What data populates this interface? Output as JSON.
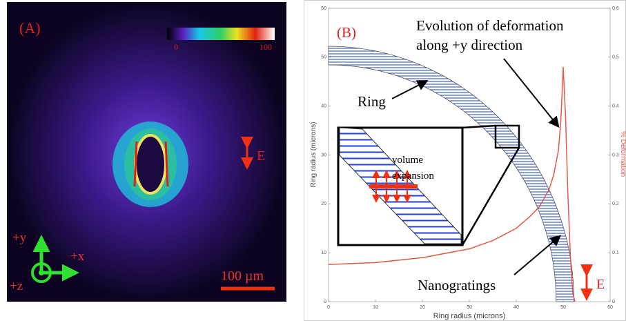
{
  "panel_a": {
    "label": "(A)",
    "colorbar_min": 0,
    "colorbar_max": 100,
    "field_label": "E",
    "axes": [
      "+y",
      "+x",
      "+z"
    ],
    "scale_bar": "100 µm"
  },
  "chart_data": {
    "type": "line",
    "label": "(B)",
    "annotations": [
      "Evolution of deformation",
      "along +y direction",
      "Ring",
      "volume",
      "expansion",
      "Nanogratings",
      "E"
    ],
    "x_label": "Ring radius (microns)",
    "y_label": "Ring radius (microns)",
    "y2_label": "% Deformation",
    "x": [
      0,
      10,
      20,
      30,
      35,
      40,
      43,
      45,
      47,
      48,
      49,
      49.5,
      50,
      50.5,
      51,
      51.5,
      52,
      52.5
    ],
    "series": [
      {
        "color": "#e05a45",
        "axis": "y2",
        "values": [
          0.076,
          0.08,
          0.09,
          0.108,
          0.125,
          0.15,
          0.175,
          0.195,
          0.23,
          0.26,
          0.31,
          0.37,
          0.48,
          0.38,
          0.22,
          0.1,
          0.02,
          0
        ]
      }
    ],
    "xlim": [
      0,
      60
    ],
    "xticks": [
      0,
      10,
      20,
      30,
      40,
      50,
      60
    ],
    "ylim": [
      0,
      60
    ],
    "yticks": [
      0,
      10,
      20,
      30,
      40,
      50,
      60
    ],
    "y2lim": [
      0,
      0.6
    ],
    "y2ticks": [
      0,
      0.1,
      0.2,
      0.3,
      0.4,
      0.5,
      0.6
    ]
  }
}
